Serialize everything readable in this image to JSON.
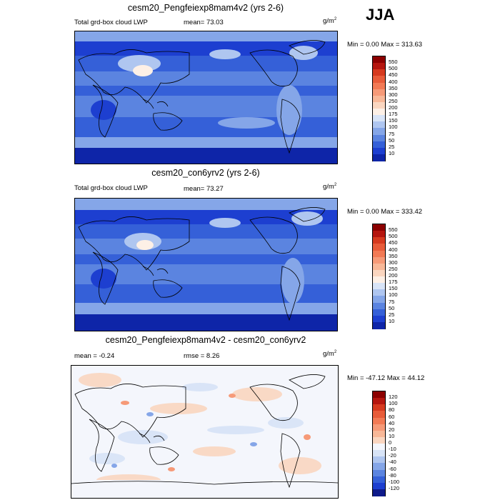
{
  "season": "JJA",
  "panels": [
    {
      "title": "cesm20_Pengfeiexp8mam4v2 (yrs 2-6)",
      "left_label": "Total grd-box cloud LWP",
      "center_label": "mean=  73.03",
      "units": "g/m",
      "units_sup": "2",
      "minmax": "Min =   0.00 Max = 313.63",
      "colorbar": {
        "labels": [
          "550",
          "500",
          "450",
          "400",
          "350",
          "300",
          "250",
          "200",
          "175",
          "150",
          "100",
          "75",
          "50",
          "25",
          "10"
        ],
        "colors": [
          "#8c0000",
          "#b5160f",
          "#d63a1f",
          "#e85c3a",
          "#f27a55",
          "#f69a78",
          "#f8b898",
          "#fad6c0",
          "#fdf0e6",
          "#d8e4f7",
          "#afc6f0",
          "#85a6e8",
          "#5b84e0",
          "#3560d8",
          "#1d3fd0",
          "#0e25a8"
        ]
      }
    },
    {
      "title": "cesm20_con6yrv2 (yrs 2-6)",
      "left_label": "Total grd-box cloud LWP",
      "center_label": "mean=  73.27",
      "units": "g/m",
      "units_sup": "2",
      "minmax": "Min =   0.00 Max = 333.42",
      "colorbar": {
        "labels": [
          "550",
          "500",
          "450",
          "400",
          "350",
          "300",
          "250",
          "200",
          "175",
          "150",
          "100",
          "75",
          "50",
          "25",
          "10"
        ],
        "colors": [
          "#8c0000",
          "#b5160f",
          "#d63a1f",
          "#e85c3a",
          "#f27a55",
          "#f69a78",
          "#f8b898",
          "#fad6c0",
          "#fdf0e6",
          "#d8e4f7",
          "#afc6f0",
          "#85a6e8",
          "#5b84e0",
          "#3560d8",
          "#1d3fd0",
          "#0e25a8"
        ]
      }
    },
    {
      "title": "cesm20_Pengfeiexp8mam4v2 - cesm20_con6yrv2",
      "left_label": "mean =  -0.24",
      "center_label": "rmse =   8.26",
      "units": "g/m",
      "units_sup": "2",
      "minmax": "Min = -47.12 Max =  44.12",
      "colorbar": {
        "labels": [
          "120",
          "100",
          "80",
          "60",
          "40",
          "20",
          "10",
          "0",
          "-10",
          "-20",
          "-40",
          "-60",
          "-80",
          "-100",
          "-120"
        ],
        "colors": [
          "#8c0000",
          "#b5160f",
          "#d63a1f",
          "#e85c3a",
          "#f27a55",
          "#f69a78",
          "#f8b898",
          "#fad6c0",
          "#f4f6fc",
          "#d8e4f7",
          "#afc6f0",
          "#85a6e8",
          "#5b84e0",
          "#3560d8",
          "#1d3fd0",
          "#0e1a8a"
        ]
      }
    }
  ],
  "chart_data": [
    {
      "type": "heatmap",
      "title": "cesm20_Pengfeiexp8mam4v2 (yrs 2-6)",
      "variable": "Total grd-box cloud LWP",
      "units": "g/m2",
      "mean": 73.03,
      "min": 0.0,
      "max": 313.63,
      "levels": [
        10,
        25,
        50,
        75,
        100,
        150,
        175,
        200,
        250,
        300,
        350,
        400,
        450,
        500,
        550
      ]
    },
    {
      "type": "heatmap",
      "title": "cesm20_con6yrv2 (yrs 2-6)",
      "variable": "Total grd-box cloud LWP",
      "units": "g/m2",
      "mean": 73.27,
      "min": 0.0,
      "max": 333.42,
      "levels": [
        10,
        25,
        50,
        75,
        100,
        150,
        175,
        200,
        250,
        300,
        350,
        400,
        450,
        500,
        550
      ]
    },
    {
      "type": "heatmap",
      "title": "cesm20_Pengfeiexp8mam4v2 - cesm20_con6yrv2",
      "units": "g/m2",
      "mean": -0.24,
      "rmse": 8.26,
      "min": -47.12,
      "max": 44.12,
      "levels": [
        -120,
        -100,
        -80,
        -60,
        -40,
        -20,
        -10,
        0,
        10,
        20,
        40,
        60,
        80,
        100,
        120
      ]
    }
  ]
}
